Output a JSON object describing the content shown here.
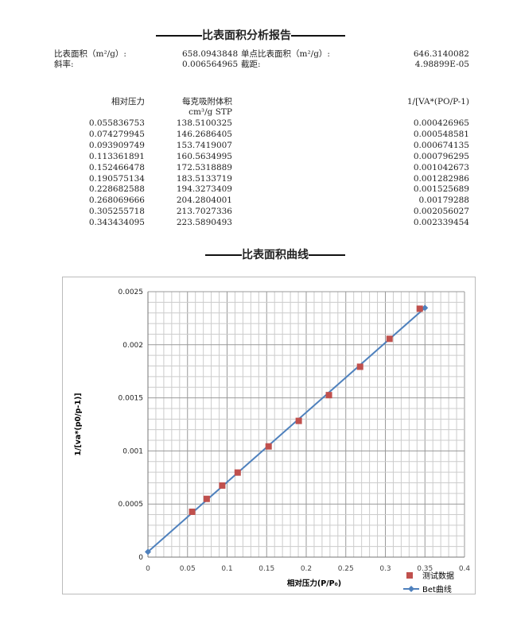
{
  "report_title": "比表面积分析报告",
  "summary": {
    "bet_area_label": "比表面积（m²/g）:",
    "bet_area_value": "658.0943848",
    "single_point_label": "单点比表面积（m²/g）:",
    "single_point_value": "646.3140082",
    "slope_label": "斜率:",
    "slope_value": "0.006564965",
    "intercept_label": "截距:",
    "intercept_value": "4.98899E-05"
  },
  "table": {
    "headers": [
      "相对压力",
      "每克吸附体积",
      "1/[VA*(PO/P-1)"
    ],
    "unit": "cm³/g STP",
    "rows": [
      [
        "0.055836753",
        "138.5100325",
        "0.000426965"
      ],
      [
        "0.074279945",
        "146.2686405",
        "0.000548581"
      ],
      [
        "0.093909749",
        "153.7419007",
        "0.000674135"
      ],
      [
        "0.113361891",
        "160.5634995",
        "0.000796295"
      ],
      [
        "0.152466478",
        "172.5318889",
        "0.001042673"
      ],
      [
        "0.190575134",
        "183.5133719",
        "0.001282986"
      ],
      [
        "0.228682588",
        "194.3273409",
        "0.001525689"
      ],
      [
        "0.268069666",
        "204.2804001",
        "0.00179288"
      ],
      [
        "0.305255718",
        "213.7027336",
        "0.002056027"
      ],
      [
        "0.343434095",
        "223.5890493",
        "0.002339454"
      ]
    ]
  },
  "chart_title": "比表面积曲线",
  "chart_data": {
    "type": "scatter",
    "xlabel": "相对压力(P/P₀)",
    "ylabel": "1/[va*(p0/p-1)]",
    "xlim": [
      0,
      0.4
    ],
    "ylim": [
      0,
      0.0025
    ],
    "xticks": [
      "0",
      "0.05",
      "0.1",
      "0.15",
      "0.2",
      "0.25",
      "0.3",
      "0.35",
      "0.4"
    ],
    "yticks": [
      "0",
      "0.0005",
      "0.001",
      "0.0015",
      "0.002",
      "0.0025"
    ],
    "grid": true,
    "legend_position": "bottom-right",
    "series": [
      {
        "name": "测试数据",
        "type": "scatter",
        "color": "#c0504d",
        "x": [
          0.055836753,
          0.074279945,
          0.093909749,
          0.113361891,
          0.152466478,
          0.190575134,
          0.228682588,
          0.268069666,
          0.305255718,
          0.343434095
        ],
        "y": [
          0.000426965,
          0.000548581,
          0.000674135,
          0.000796295,
          0.001042673,
          0.001282986,
          0.001525689,
          0.00179288,
          0.002056027,
          0.002339454
        ]
      },
      {
        "name": "Bet曲线",
        "type": "line",
        "color": "#4f81bd",
        "x": [
          0,
          0.35
        ],
        "y": [
          4.98899e-05,
          0.0023476276
        ]
      }
    ]
  }
}
